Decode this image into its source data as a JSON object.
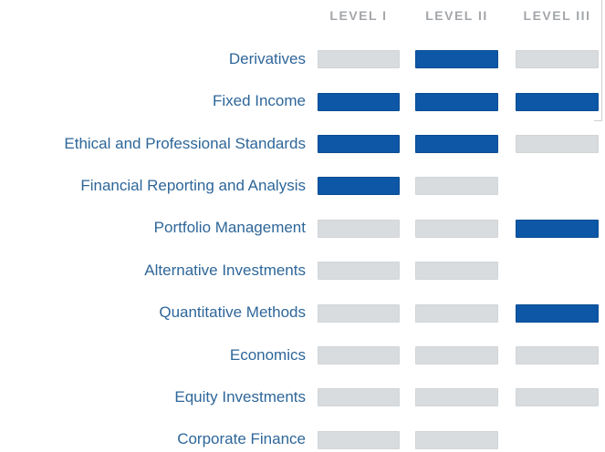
{
  "chart_data": {
    "type": "heatmap",
    "columns": [
      "LEVEL I",
      "LEVEL II",
      "LEVEL III"
    ],
    "categories": [
      "Derivatives",
      "Fixed Income",
      "Ethical and Professional Standards",
      "Financial Reporting and Analysis",
      "Portfolio Management",
      "Alternative Investments",
      "Quantitative Methods",
      "Economics",
      "Equity Investments",
      "Corporate Finance"
    ],
    "cells": [
      [
        "muted",
        "highlight",
        "muted"
      ],
      [
        "highlight",
        "highlight",
        "highlight"
      ],
      [
        "highlight",
        "highlight",
        "muted"
      ],
      [
        "highlight",
        "muted",
        "none"
      ],
      [
        "muted",
        "muted",
        "highlight"
      ],
      [
        "muted",
        "muted",
        "none"
      ],
      [
        "muted",
        "muted",
        "highlight"
      ],
      [
        "muted",
        "muted",
        "muted"
      ],
      [
        "muted",
        "muted",
        "muted"
      ],
      [
        "muted",
        "muted",
        "none"
      ]
    ],
    "legend_position": "none",
    "grid": false
  },
  "colors": {
    "highlight": "#0d57a6",
    "highlight_edge": "#0a4c92",
    "muted": "#d9dcde",
    "muted_edge": "#d2d5d8",
    "label_text": "#2e6699",
    "header_text": "#a3a6aa",
    "artifact_line": "#cdd0d3",
    "background": "#ffffff"
  }
}
